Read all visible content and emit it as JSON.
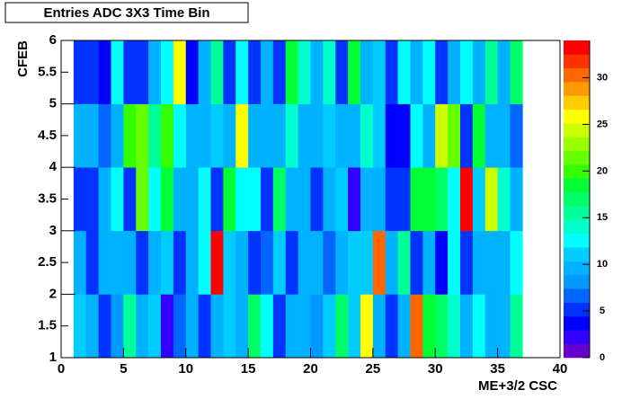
{
  "chart_data": {
    "type": "heatmap",
    "title": "Entries ADC 3X3 Time Bin",
    "xlabel": "ME+3/2 CSC",
    "ylabel": "CFEB",
    "xbins": [
      1,
      2,
      3,
      4,
      5,
      6,
      7,
      8,
      9,
      10,
      11,
      12,
      13,
      14,
      15,
      16,
      17,
      18,
      19,
      20,
      21,
      22,
      23,
      24,
      25,
      26,
      27,
      28,
      29,
      30,
      31,
      32,
      33,
      34,
      35,
      36,
      37
    ],
    "ybins": [
      1,
      2,
      3,
      4,
      5,
      6
    ],
    "z": [
      [
        11,
        9,
        5,
        8,
        15,
        10,
        11,
        2,
        7,
        9,
        5,
        10,
        11,
        10,
        17,
        12,
        5,
        9,
        9,
        8,
        11,
        17,
        11,
        26,
        9,
        5,
        9,
        31,
        19,
        17,
        14,
        10,
        12,
        10,
        9,
        15
      ],
      [
        9,
        5,
        10,
        9,
        9,
        5,
        9,
        11,
        5,
        9,
        12,
        33,
        11,
        9,
        5,
        6,
        11,
        5,
        9,
        9,
        6,
        10,
        11,
        11,
        30,
        10,
        16,
        5,
        10,
        4,
        12,
        5,
        10,
        10,
        10,
        13
      ],
      [
        5,
        5,
        9,
        13,
        5,
        21,
        13,
        18,
        9,
        10,
        13,
        5,
        19,
        12,
        12,
        5,
        17,
        9,
        9,
        5,
        9,
        11,
        2,
        9,
        9,
        5,
        5,
        19,
        19,
        17,
        12,
        33,
        11,
        25,
        14,
        9
      ],
      [
        9,
        9,
        6,
        10,
        20,
        22,
        15,
        20,
        12,
        10,
        9,
        11,
        10,
        26,
        10,
        9,
        10,
        14,
        10,
        9,
        11,
        10,
        9,
        14,
        11,
        4,
        4,
        12,
        9,
        25,
        21,
        5,
        18,
        9,
        9,
        7
      ],
      [
        5,
        5,
        4,
        12,
        5,
        5,
        9,
        12,
        26,
        3,
        9,
        16,
        5,
        12,
        5,
        9,
        5,
        18,
        14,
        9,
        14,
        5,
        18,
        9,
        11,
        5,
        12,
        9,
        12,
        5,
        9,
        12,
        9,
        15,
        9,
        17
      ]
    ],
    "xlim": [
      0,
      40
    ],
    "xticks": [
      0,
      5,
      10,
      15,
      20,
      25,
      30,
      35,
      40
    ],
    "ylim": [
      1,
      6
    ],
    "yticks": [
      1,
      1.5,
      2,
      2.5,
      3,
      3.5,
      4,
      4.5,
      5,
      5.5,
      6
    ],
    "zlim": [
      0,
      34
    ],
    "zticks": [
      0,
      5,
      10,
      15,
      20,
      25,
      30
    ],
    "palette": [
      "#6600cc",
      "#3300ff",
      "#0000ff",
      "#0033ff",
      "#0066ff",
      "#0099ff",
      "#00b2ff",
      "#00ccff",
      "#00ffff",
      "#00ffcc",
      "#00ff99",
      "#00ff66",
      "#00ff33",
      "#33ff00",
      "#66ff00",
      "#99ff00",
      "#ccff00",
      "#ffff00",
      "#ffcc00",
      "#ff9900",
      "#ff6600",
      "#ff3300",
      "#ff0000"
    ]
  }
}
